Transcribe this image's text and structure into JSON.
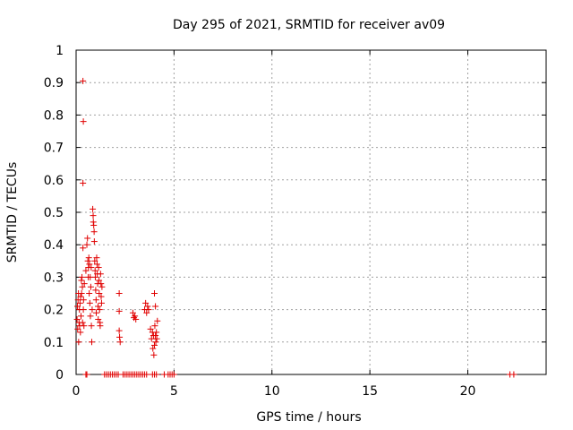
{
  "chart_data": {
    "type": "scatter",
    "title": "Day 295 of 2021, SRMTID for receiver av09",
    "xlabel": "GPS time / hours",
    "ylabel": "SRMTID / TECUs",
    "xlim": [
      0,
      24
    ],
    "ylim": [
      0,
      1
    ],
    "grid": true,
    "marker": "+",
    "marker_color": "#e00000",
    "xticks": [
      0,
      5,
      10,
      15,
      20
    ],
    "yticks": [
      0,
      0.1,
      0.2,
      0.3,
      0.4,
      0.5,
      0.6,
      0.7,
      0.8,
      0.9,
      1
    ],
    "xtick_labels": [
      "0",
      "5",
      "10",
      "15",
      "20"
    ],
    "ytick_labels": [
      "0",
      "0.1",
      "0.2",
      "0.3",
      "0.4",
      "0.5",
      "0.6",
      "0.7",
      "0.8",
      "0.9",
      "1"
    ],
    "series": [
      {
        "name": "SRMTID",
        "points": [
          [
            0.35,
            0.905
          ],
          [
            0.37,
            0.78
          ],
          [
            0.35,
            0.59
          ],
          [
            0.05,
            0.17
          ],
          [
            0.07,
            0.21
          ],
          [
            0.08,
            0.14
          ],
          [
            0.1,
            0.23
          ],
          [
            0.12,
            0.25
          ],
          [
            0.13,
            0.1
          ],
          [
            0.15,
            0.16
          ],
          [
            0.17,
            0.2
          ],
          [
            0.18,
            0.15
          ],
          [
            0.2,
            0.22
          ],
          [
            0.22,
            0.13
          ],
          [
            0.23,
            0.24
          ],
          [
            0.25,
            0.18
          ],
          [
            0.27,
            0.29
          ],
          [
            0.28,
            0.25
          ],
          [
            0.3,
            0.3
          ],
          [
            0.32,
            0.27
          ],
          [
            0.33,
            0.16
          ],
          [
            0.35,
            0.39
          ],
          [
            0.37,
            0.2
          ],
          [
            0.38,
            0.23
          ],
          [
            0.4,
            0.15
          ],
          [
            0.42,
            0.28
          ],
          [
            0.5,
            0.32
          ],
          [
            0.55,
            0.4
          ],
          [
            0.58,
            0.42
          ],
          [
            0.6,
            0.35
          ],
          [
            0.62,
            0.3
          ],
          [
            0.63,
            0.33
          ],
          [
            0.65,
            0.36
          ],
          [
            0.67,
            0.25
          ],
          [
            0.68,
            0.34
          ],
          [
            0.7,
            0.22
          ],
          [
            0.72,
            0.3
          ],
          [
            0.73,
            0.18
          ],
          [
            0.75,
            0.27
          ],
          [
            0.77,
            0.33
          ],
          [
            0.78,
            0.15
          ],
          [
            0.8,
            0.1
          ],
          [
            0.82,
            0.2
          ],
          [
            0.85,
            0.51
          ],
          [
            0.87,
            0.49
          ],
          [
            0.88,
            0.47
          ],
          [
            0.9,
            0.46
          ],
          [
            0.92,
            0.44
          ],
          [
            0.93,
            0.41
          ],
          [
            0.95,
            0.35
          ],
          [
            0.97,
            0.32
          ],
          [
            0.98,
            0.3
          ],
          [
            1.0,
            0.26
          ],
          [
            1.02,
            0.23
          ],
          [
            1.03,
            0.19
          ],
          [
            1.05,
            0.36
          ],
          [
            1.07,
            0.34
          ],
          [
            1.08,
            0.31
          ],
          [
            1.1,
            0.28
          ],
          [
            1.12,
            0.21
          ],
          [
            1.13,
            0.17
          ],
          [
            1.15,
            0.33
          ],
          [
            1.17,
            0.29
          ],
          [
            1.18,
            0.25
          ],
          [
            1.2,
            0.2
          ],
          [
            1.22,
            0.16
          ],
          [
            1.23,
            0.15
          ],
          [
            1.25,
            0.31
          ],
          [
            1.27,
            0.28
          ],
          [
            1.28,
            0.24
          ],
          [
            1.3,
            0.22
          ],
          [
            1.32,
            0.27
          ],
          [
            2.2,
            0.25
          ],
          [
            2.2,
            0.195
          ],
          [
            2.2,
            0.135
          ],
          [
            2.22,
            0.115
          ],
          [
            2.25,
            0.1
          ],
          [
            2.9,
            0.19
          ],
          [
            2.95,
            0.175
          ],
          [
            3.0,
            0.18
          ],
          [
            3.05,
            0.17
          ],
          [
            3.5,
            0.2
          ],
          [
            3.55,
            0.22
          ],
          [
            3.6,
            0.19
          ],
          [
            3.65,
            0.21
          ],
          [
            3.7,
            0.2
          ],
          [
            3.8,
            0.14
          ],
          [
            3.85,
            0.11
          ],
          [
            3.9,
            0.13
          ],
          [
            3.92,
            0.08
          ],
          [
            3.95,
            0.12
          ],
          [
            3.97,
            0.06
          ],
          [
            4.0,
            0.09
          ],
          [
            4.02,
            0.15
          ],
          [
            4.05,
            0.12
          ],
          [
            4.07,
            0.1
          ],
          [
            4.1,
            0.13
          ],
          [
            4.12,
            0.11
          ],
          [
            4.0,
            0.25
          ],
          [
            4.05,
            0.21
          ],
          [
            4.15,
            0.165
          ],
          [
            0.5,
            0
          ],
          [
            0.55,
            0
          ],
          [
            1.45,
            0
          ],
          [
            1.55,
            0
          ],
          [
            1.65,
            0
          ],
          [
            1.75,
            0
          ],
          [
            1.85,
            0
          ],
          [
            1.95,
            0
          ],
          [
            2.05,
            0
          ],
          [
            2.15,
            0
          ],
          [
            2.4,
            0
          ],
          [
            2.5,
            0
          ],
          [
            2.6,
            0
          ],
          [
            2.7,
            0
          ],
          [
            2.8,
            0
          ],
          [
            2.9,
            0
          ],
          [
            3.0,
            0
          ],
          [
            3.1,
            0
          ],
          [
            3.2,
            0
          ],
          [
            3.3,
            0
          ],
          [
            3.4,
            0
          ],
          [
            3.5,
            0
          ],
          [
            3.6,
            0
          ],
          [
            3.9,
            0
          ],
          [
            4.0,
            0
          ],
          [
            4.1,
            0
          ],
          [
            4.5,
            0
          ],
          [
            4.7,
            0
          ],
          [
            4.8,
            0
          ],
          [
            4.9,
            0
          ],
          [
            5.0,
            0
          ],
          [
            22.15,
            0
          ],
          [
            22.35,
            0
          ]
        ]
      }
    ]
  }
}
